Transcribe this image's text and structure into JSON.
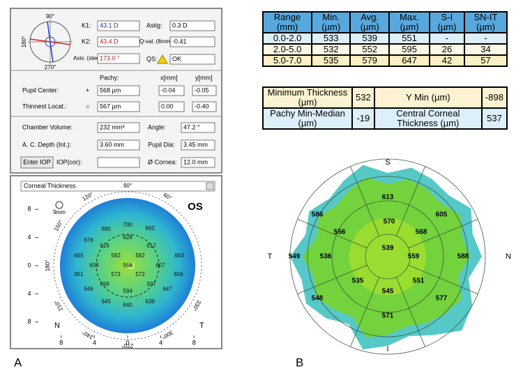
{
  "panel_a": {
    "label": "A",
    "keratometry": {
      "k1_label": "K1:",
      "k1": "43.1 D",
      "astig_label": "Astig:",
      "astig": "0.3 D",
      "k2_label": "K2:",
      "k2": "43.4 D",
      "qval_label": "Q-val. (8mm)",
      "qval": "-0.41",
      "axis_label": "Axis: (steep)",
      "axis": "173.0 °",
      "qs_label": "QS:",
      "qs": "OK",
      "dial": [
        "90°",
        "180°",
        "270°"
      ]
    },
    "pachy": {
      "headers": [
        "Pachy:",
        "x[mm]",
        "y[mm]"
      ],
      "rows": [
        {
          "label": "Pupil Center:",
          "symbol": "+",
          "pachy": "568 µm",
          "x": "-0.04",
          "y": "-0.05"
        },
        {
          "label": "Thinnest Locat.:",
          "symbol": "○",
          "pachy": "567 µm",
          "x": "0.00",
          "y": "-0.40"
        }
      ]
    },
    "chamber": {
      "volume_label": "Chamber Volume:",
      "volume": "232 mm³",
      "angle_label": "Angle:",
      "angle": "47.2 °",
      "depth_label": "A. C. Depth (Int.):",
      "depth": "3.60 mm",
      "pupil_label": "Pupil Dia:",
      "pupil": "3.45 mm",
      "iop_button": "Enter IOP",
      "iop_label": "IOP(cor):",
      "cornea_label": "Ø Cornea:",
      "cornea": "12.0 mm"
    },
    "map": {
      "dropdown": "Corneal Thickness",
      "zoom": "9mm",
      "eye": "OS",
      "angles": [
        {
          "value": 60,
          "label": "60°"
        },
        {
          "value": 90,
          "label": "90°"
        },
        {
          "value": 120,
          "label": "120°"
        },
        {
          "value": 150,
          "label": "150°"
        },
        {
          "value": 180,
          "label": "180°"
        },
        {
          "value": 210,
          "label": "210°"
        },
        {
          "value": 240,
          "label": "240°"
        },
        {
          "value": 270,
          "label": "270°"
        },
        {
          "value": 300,
          "label": "300°"
        },
        {
          "value": 330,
          "label": "330°"
        }
      ],
      "xticks": [
        {
          "value": -8,
          "label": "8"
        },
        {
          "value": -4,
          "label": "4"
        },
        0,
        4,
        8
      ],
      "yticks": [
        8,
        4,
        0,
        {
          "value": -4,
          "label": "4"
        },
        {
          "value": -8,
          "label": "8"
        }
      ],
      "nasal": "N",
      "temporal": "T",
      "values": [
        700,
        690,
        692,
        628,
        676,
        616,
        617,
        665,
        582,
        582,
        663,
        608,
        568,
        607,
        651,
        573,
        572,
        656,
        599,
        597,
        594,
        646,
        647,
        645,
        640,
        638
      ]
    }
  },
  "panel_b": {
    "label": "B",
    "summary": {
      "headers": [
        "Range (mm)",
        "Min. (µm)",
        "Avg. (µm)",
        "Max. (µm)",
        "S-I (µm)",
        "SN-IT (µm)"
      ],
      "rows": [
        [
          "0.0-2.0",
          533,
          539,
          551,
          "-",
          "-"
        ],
        [
          "2.0-5.0",
          532,
          552,
          595,
          26,
          34
        ],
        [
          "5.0-7.0",
          535,
          579,
          647,
          42,
          57
        ]
      ]
    },
    "thickness": {
      "rows": [
        [
          "Minimum Thickness (µm)",
          532,
          "Y Min (µm)",
          -898
        ],
        [
          "Pachy Min-Median (µm)",
          -19,
          "Central Corneal Thickness (µm)",
          537
        ]
      ]
    },
    "map": {
      "superior": "S",
      "nasal": "N",
      "inferior": "I",
      "temporal": "T",
      "values": [
        613,
        586,
        605,
        570,
        556,
        568,
        539,
        549,
        536,
        559,
        588,
        535,
        545,
        551,
        548,
        577,
        571
      ]
    }
  }
}
